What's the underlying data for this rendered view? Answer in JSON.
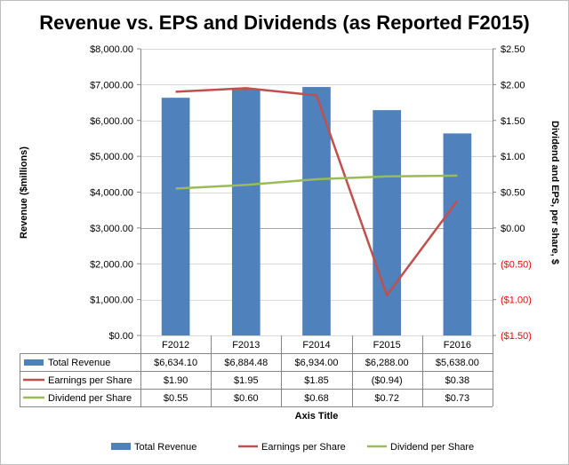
{
  "chart_data": {
    "type": "bar",
    "title": "Revenue vs. EPS and Dividends (as Reported F2015)",
    "xlabel": "Axis Title",
    "ylabel": "Revenue ($millions)",
    "y2label": "Dividend and EPS, per share, $",
    "categories": [
      "F2012",
      "F2013",
      "F2014",
      "F2015",
      "F2016"
    ],
    "ylim": [
      0,
      8000
    ],
    "yticks": [
      0,
      1000,
      2000,
      3000,
      4000,
      5000,
      6000,
      7000,
      8000
    ],
    "ytick_labels": [
      "$0.00",
      "$1,000.00",
      "$2,000.00",
      "$3,000.00",
      "$4,000.00",
      "$5,000.00",
      "$6,000.00",
      "$7,000.00",
      "$8,000.00"
    ],
    "y2lim": [
      -1.5,
      2.5
    ],
    "y2ticks": [
      -1.5,
      -1.0,
      -0.5,
      0,
      0.5,
      1.0,
      1.5,
      2.0,
      2.5
    ],
    "y2tick_labels": [
      "($1.50)",
      "($1.00)",
      "($0.50)",
      "$0.00",
      "$0.50",
      "$1.00",
      "$1.50",
      "$2.00",
      "$2.50"
    ],
    "grid": true,
    "legend_position": "bottom",
    "series": [
      {
        "name": "Total Revenue",
        "type": "bar",
        "axis": "left",
        "color": "#4f81bd",
        "values": [
          6634.1,
          6884.48,
          6934.0,
          6288.0,
          5638.0
        ],
        "labels": [
          "$6,634.10",
          "$6,884.48",
          "$6,934.00",
          "$6,288.00",
          "$5,638.00"
        ]
      },
      {
        "name": "Earnings per Share",
        "type": "line",
        "axis": "right",
        "color": "#c0504d",
        "values": [
          1.9,
          1.95,
          1.85,
          -0.94,
          0.38
        ],
        "labels": [
          "$1.90",
          "$1.95",
          "$1.85",
          "($0.94)",
          "$0.38"
        ]
      },
      {
        "name": "Dividend per Share",
        "type": "line",
        "axis": "right",
        "color": "#9bbb59",
        "values": [
          0.55,
          0.6,
          0.68,
          0.72,
          0.73
        ],
        "labels": [
          "$0.55",
          "$0.60",
          "$0.68",
          "$0.72",
          "$0.73"
        ]
      }
    ],
    "negative_tick_color": "#ff0000"
  }
}
